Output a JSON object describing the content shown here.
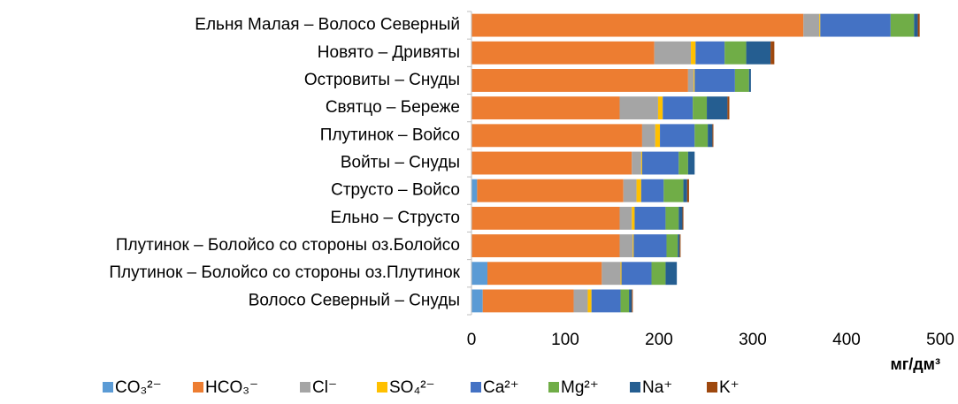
{
  "chart_data": {
    "type": "stacked_barh",
    "categories": [
      "Ельня Малая – Волосо Северный",
      "Новято – Дривяты",
      "Островиты – Снуды",
      "Святцо – Береже",
      "Плутинок – Войсо",
      "Войты – Снуды",
      "Струсто – Войсо",
      "Ельно – Струсто",
      "Плутинок – Болойсо со стороны оз.Болойсо",
      "Плутинок – Болойсо со стороны оз.Плутинок",
      "Волосо Северный – Снуды"
    ],
    "series": [
      {
        "name": "CO₃²⁻",
        "color": "#5b9bd5",
        "values": [
          0,
          0,
          0,
          0,
          0,
          0,
          6,
          0,
          0,
          17,
          12
        ]
      },
      {
        "name": "HCO₃⁻",
        "color": "#ed7d31",
        "values": [
          354,
          195,
          231,
          158,
          182,
          171,
          156,
          158,
          158,
          122,
          97
        ]
      },
      {
        "name": "Cl⁻",
        "color": "#a5a5a5",
        "values": [
          17,
          39,
          6,
          41,
          14,
          10,
          14,
          13,
          14,
          20,
          15
        ]
      },
      {
        "name": "SO₄²⁻",
        "color": "#ffc000",
        "values": [
          1,
          5,
          1,
          5,
          5,
          1,
          5,
          3,
          1,
          1,
          4
        ]
      },
      {
        "name": "Ca²⁺",
        "color": "#4472c4",
        "values": [
          75,
          31,
          43,
          32,
          37,
          39,
          24,
          33,
          35,
          32,
          31
        ]
      },
      {
        "name": "Mg²⁺",
        "color": "#70ad47",
        "values": [
          25,
          23,
          15,
          15,
          14,
          10,
          21,
          14,
          12,
          15,
          9
        ]
      },
      {
        "name": "Na⁺",
        "color": "#255e91",
        "values": [
          4,
          26,
          2,
          22,
          5,
          7,
          4,
          4,
          2,
          12,
          3
        ]
      },
      {
        "name": "K⁺",
        "color": "#9e480e",
        "values": [
          2,
          4,
          0,
          2,
          1,
          0,
          2,
          1,
          1,
          0,
          1
        ]
      }
    ],
    "xlabel": "мг/дм³",
    "xlim": [
      0,
      500
    ],
    "xticks": [
      0,
      100,
      200,
      300,
      400,
      500
    ],
    "grid": false
  }
}
